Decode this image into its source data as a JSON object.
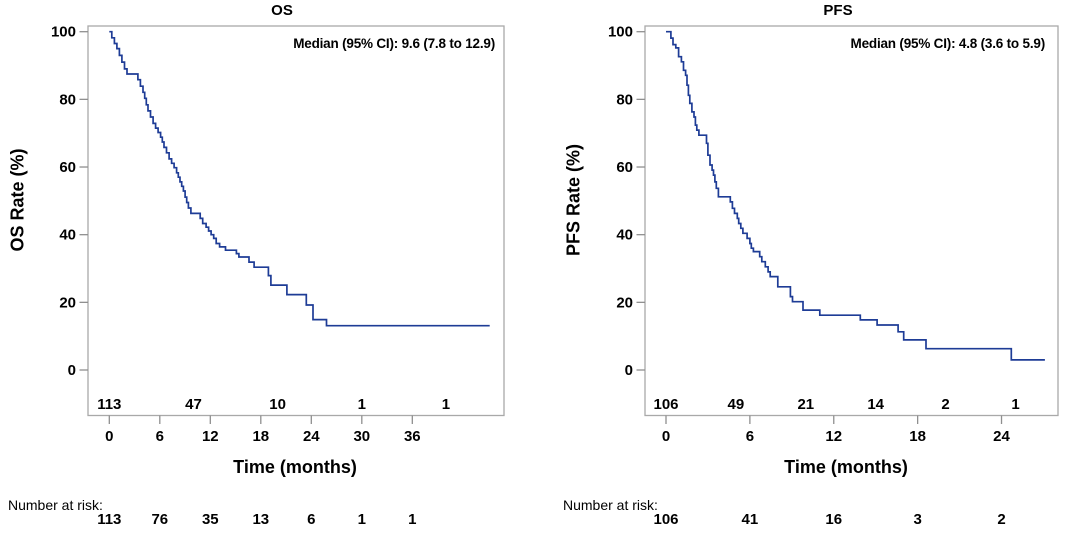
{
  "figure": {
    "background": "#ffffff",
    "curve_color": "#1e3c96",
    "frame_color": "#a9a9a9",
    "tick_color": "#8f8f8f",
    "text_color": "#000000"
  },
  "chart_data": [
    {
      "type": "line",
      "subtype": "kaplan-meier-step",
      "title": "OS",
      "ylabel": "OS Rate (%)",
      "xlabel": "Time (months)",
      "annotation": "Median (95% CI): 9.6 (7.8 to 12.9)",
      "legend_position": "none",
      "grid": false,
      "ylim": [
        0,
        100
      ],
      "xlim": [
        0,
        46
      ],
      "yticks": [
        0,
        20,
        40,
        60,
        80,
        100
      ],
      "xticks": [
        0,
        6,
        12,
        18,
        24,
        30,
        36
      ],
      "inner_at_risk": {
        "times": [
          0,
          10,
          20,
          30,
          40
        ],
        "values": [
          "113",
          "47",
          "10",
          "1",
          "1"
        ]
      },
      "number_at_risk": {
        "label": "Number at risk:",
        "times": [
          0,
          6,
          12,
          18,
          24,
          30,
          36
        ],
        "values": [
          "113",
          "76",
          "35",
          "13",
          "6",
          "1",
          "1"
        ]
      },
      "series": [
        {
          "name": "OS",
          "points": [
            [
              0,
              100
            ],
            [
              0.3,
              98.2
            ],
            [
              0.6,
              96.5
            ],
            [
              0.9,
              95.0
            ],
            [
              1.2,
              93.0
            ],
            [
              1.5,
              91.0
            ],
            [
              1.8,
              89.0
            ],
            [
              2.1,
              87.5
            ],
            [
              3.4,
              85.8
            ],
            [
              3.7,
              83.9
            ],
            [
              4.0,
              82.1
            ],
            [
              4.2,
              80.3
            ],
            [
              4.4,
              78.4
            ],
            [
              4.6,
              76.6
            ],
            [
              4.9,
              74.8
            ],
            [
              5.2,
              72.9
            ],
            [
              5.5,
              71.5
            ],
            [
              5.8,
              70.2
            ],
            [
              6.1,
              68.8
            ],
            [
              6.3,
              67.4
            ],
            [
              6.5,
              65.8
            ],
            [
              6.8,
              64.2
            ],
            [
              7.1,
              62.4
            ],
            [
              7.4,
              61.1
            ],
            [
              7.7,
              59.8
            ],
            [
              8.0,
              58.3
            ],
            [
              8.2,
              57.0
            ],
            [
              8.4,
              55.6
            ],
            [
              8.6,
              54.3
            ],
            [
              8.8,
              52.9
            ],
            [
              9.0,
              51.1
            ],
            [
              9.2,
              49.5
            ],
            [
              9.4,
              47.9
            ],
            [
              9.7,
              46.3
            ],
            [
              10.8,
              44.8
            ],
            [
              11.1,
              43.3
            ],
            [
              11.5,
              42.2
            ],
            [
              11.8,
              41.1
            ],
            [
              12.1,
              40.0
            ],
            [
              12.4,
              38.9
            ],
            [
              12.7,
              37.4
            ],
            [
              13.1,
              36.4
            ],
            [
              13.8,
              35.4
            ],
            [
              15.1,
              34.4
            ],
            [
              15.4,
              33.4
            ],
            [
              16.6,
              31.9
            ],
            [
              17.2,
              30.4
            ],
            [
              18.9,
              27.9
            ],
            [
              19.2,
              25.1
            ],
            [
              21.1,
              22.3
            ],
            [
              23.4,
              19.2
            ],
            [
              24.2,
              14.9
            ],
            [
              25.8,
              13.1
            ],
            [
              45.2,
              13.1
            ]
          ]
        }
      ]
    },
    {
      "type": "line",
      "subtype": "kaplan-meier-step",
      "title": "PFS",
      "ylabel": "PFS Rate (%)",
      "xlabel": "Time (months)",
      "annotation": "Median (95% CI): 4.8 (3.6 to 5.9)",
      "legend_position": "none",
      "grid": false,
      "ylim": [
        0,
        100
      ],
      "xlim": [
        0,
        28
      ],
      "yticks": [
        0,
        20,
        40,
        60,
        80,
        100
      ],
      "xticks": [
        0,
        6,
        12,
        18,
        24
      ],
      "inner_at_risk": {
        "times": [
          0,
          5,
          10,
          15,
          20,
          25
        ],
        "values": [
          "106",
          "49",
          "21",
          "14",
          "2",
          "1"
        ]
      },
      "number_at_risk": {
        "label": "Number at risk:",
        "times": [
          0,
          6,
          12,
          18,
          24
        ],
        "values": [
          "106",
          "41",
          "16",
          "3",
          "2"
        ]
      },
      "series": [
        {
          "name": "PFS",
          "points": [
            [
              0,
              100
            ],
            [
              0.35,
              98.1
            ],
            [
              0.5,
              96.2
            ],
            [
              0.7,
              95.2
            ],
            [
              0.9,
              92.6
            ],
            [
              1.1,
              91.1
            ],
            [
              1.25,
              88.6
            ],
            [
              1.4,
              87.1
            ],
            [
              1.5,
              84.2
            ],
            [
              1.6,
              81.2
            ],
            [
              1.7,
              78.8
            ],
            [
              1.85,
              76.3
            ],
            [
              2.0,
              74.8
            ],
            [
              2.1,
              72.4
            ],
            [
              2.2,
              70.9
            ],
            [
              2.35,
              69.4
            ],
            [
              2.9,
              67.0
            ],
            [
              3.0,
              63.5
            ],
            [
              3.15,
              60.6
            ],
            [
              3.3,
              59.1
            ],
            [
              3.4,
              57.6
            ],
            [
              3.5,
              55.6
            ],
            [
              3.6,
              53.7
            ],
            [
              3.75,
              51.2
            ],
            [
              4.6,
              49.7
            ],
            [
              4.75,
              47.8
            ],
            [
              4.9,
              46.3
            ],
            [
              5.1,
              44.8
            ],
            [
              5.2,
              43.3
            ],
            [
              5.35,
              41.9
            ],
            [
              5.5,
              40.4
            ],
            [
              5.8,
              38.9
            ],
            [
              6.0,
              37.4
            ],
            [
              6.1,
              36.0
            ],
            [
              6.25,
              35.0
            ],
            [
              6.7,
              33.5
            ],
            [
              6.85,
              32.0
            ],
            [
              7.1,
              30.5
            ],
            [
              7.3,
              29.0
            ],
            [
              7.45,
              27.6
            ],
            [
              8.0,
              24.6
            ],
            [
              8.9,
              21.7
            ],
            [
              9.05,
              20.2
            ],
            [
              9.8,
              17.7
            ],
            [
              11.0,
              16.2
            ],
            [
              13.9,
              14.8
            ],
            [
              15.1,
              13.3
            ],
            [
              16.6,
              11.3
            ],
            [
              17.0,
              8.9
            ],
            [
              18.6,
              6.3
            ],
            [
              24.7,
              3.0
            ],
            [
              27.1,
              3.0
            ]
          ]
        }
      ]
    }
  ]
}
